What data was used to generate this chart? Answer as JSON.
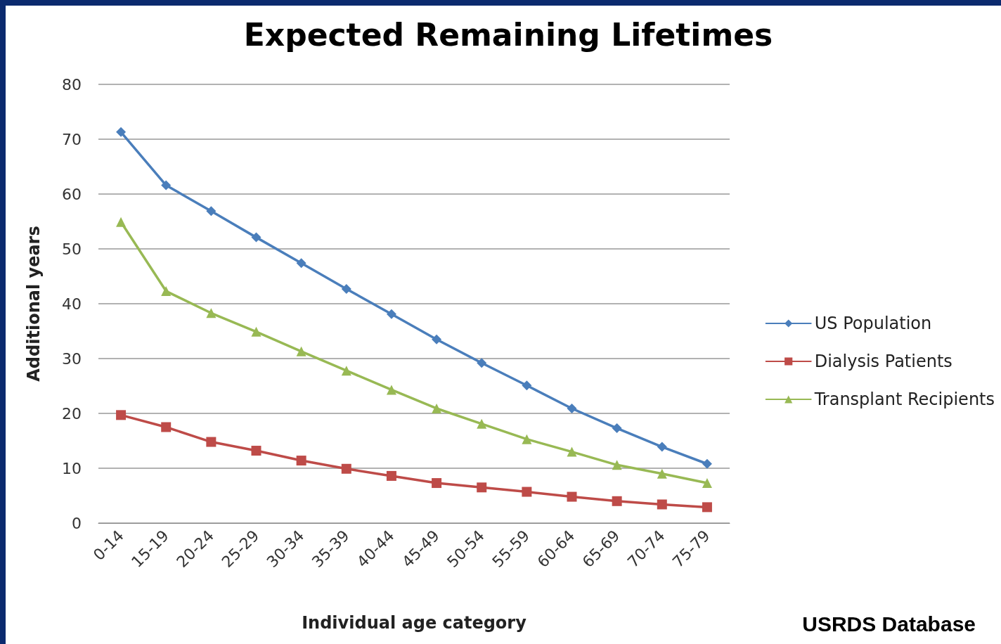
{
  "chart_data": {
    "type": "line",
    "title": "Expected Remaining Lifetimes",
    "xlabel": "Individual age category",
    "ylabel": "Additional years",
    "categories": [
      "0-14",
      "15-19",
      "20-24",
      "25-29",
      "30-34",
      "35-39",
      "40-44",
      "45-49",
      "50-54",
      "55-59",
      "60-64",
      "65-69",
      "70-74",
      "75-79"
    ],
    "series": [
      {
        "name": "US Population",
        "color": "#4a7ebb",
        "marker": "diamond",
        "values": [
          71.3,
          61.6,
          56.9,
          52.1,
          47.4,
          42.7,
          38.1,
          33.5,
          29.2,
          25.1,
          20.9,
          17.3,
          13.9,
          10.8
        ]
      },
      {
        "name": "Dialysis Patients",
        "color": "#be4b48",
        "marker": "square",
        "values": [
          19.7,
          17.5,
          14.8,
          13.2,
          11.4,
          9.9,
          8.6,
          7.3,
          6.5,
          5.7,
          4.8,
          4.0,
          3.4,
          2.9
        ]
      },
      {
        "name": "Transplant Recipients",
        "color": "#98b954",
        "marker": "triangle",
        "values": [
          54.9,
          42.3,
          38.3,
          34.9,
          31.3,
          27.8,
          24.3,
          20.9,
          18.1,
          15.3,
          13.0,
          10.6,
          9.0,
          7.3
        ]
      }
    ],
    "ylim": [
      0,
      80
    ],
    "yticks": [
      0,
      10,
      20,
      30,
      40,
      50,
      60,
      70,
      80
    ],
    "grid": "y",
    "legend": "right",
    "line_style": "solid",
    "annotations": [
      "USRDS Database"
    ]
  }
}
